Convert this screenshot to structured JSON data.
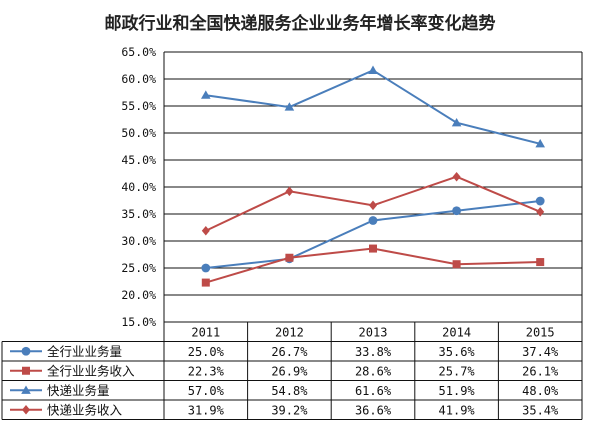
{
  "chart_data": {
    "type": "line",
    "title": "邮政行业和全国快递服务企业业务年增长率变化趋势",
    "categories": [
      "2011",
      "2012",
      "2013",
      "2014",
      "2015"
    ],
    "ylim": [
      15.0,
      65.0
    ],
    "yticks": [
      "15.0%",
      "20.0%",
      "25.0%",
      "30.0%",
      "35.0%",
      "40.0%",
      "45.0%",
      "50.0%",
      "55.0%",
      "60.0%",
      "65.0%"
    ],
    "grid": true,
    "legend": "data-table",
    "series": [
      {
        "name": "全行业业务量",
        "color": "#4a7ebb",
        "marker": "circle",
        "values": [
          25.0,
          26.7,
          33.8,
          35.6,
          37.4
        ],
        "labels": [
          "25.0%",
          "26.7%",
          "33.8%",
          "35.6%",
          "37.4%"
        ]
      },
      {
        "name": "全行业业务收入",
        "color": "#be4b48",
        "marker": "square",
        "values": [
          22.3,
          26.9,
          28.6,
          25.7,
          26.1
        ],
        "labels": [
          "22.3%",
          "26.9%",
          "28.6%",
          "25.7%",
          "26.1%"
        ]
      },
      {
        "name": "快递业务量",
        "color": "#4a7ebb",
        "marker": "triangle",
        "values": [
          57.0,
          54.8,
          61.6,
          51.9,
          48.0
        ],
        "labels": [
          "57.0%",
          "54.8%",
          "61.6%",
          "51.9%",
          "48.0%"
        ]
      },
      {
        "name": "快递业务收入",
        "color": "#be4b48",
        "marker": "diamond",
        "values": [
          31.9,
          39.2,
          36.6,
          41.9,
          35.4
        ],
        "labels": [
          "31.9%",
          "39.2%",
          "36.6%",
          "41.9%",
          "35.4%"
        ]
      }
    ]
  }
}
